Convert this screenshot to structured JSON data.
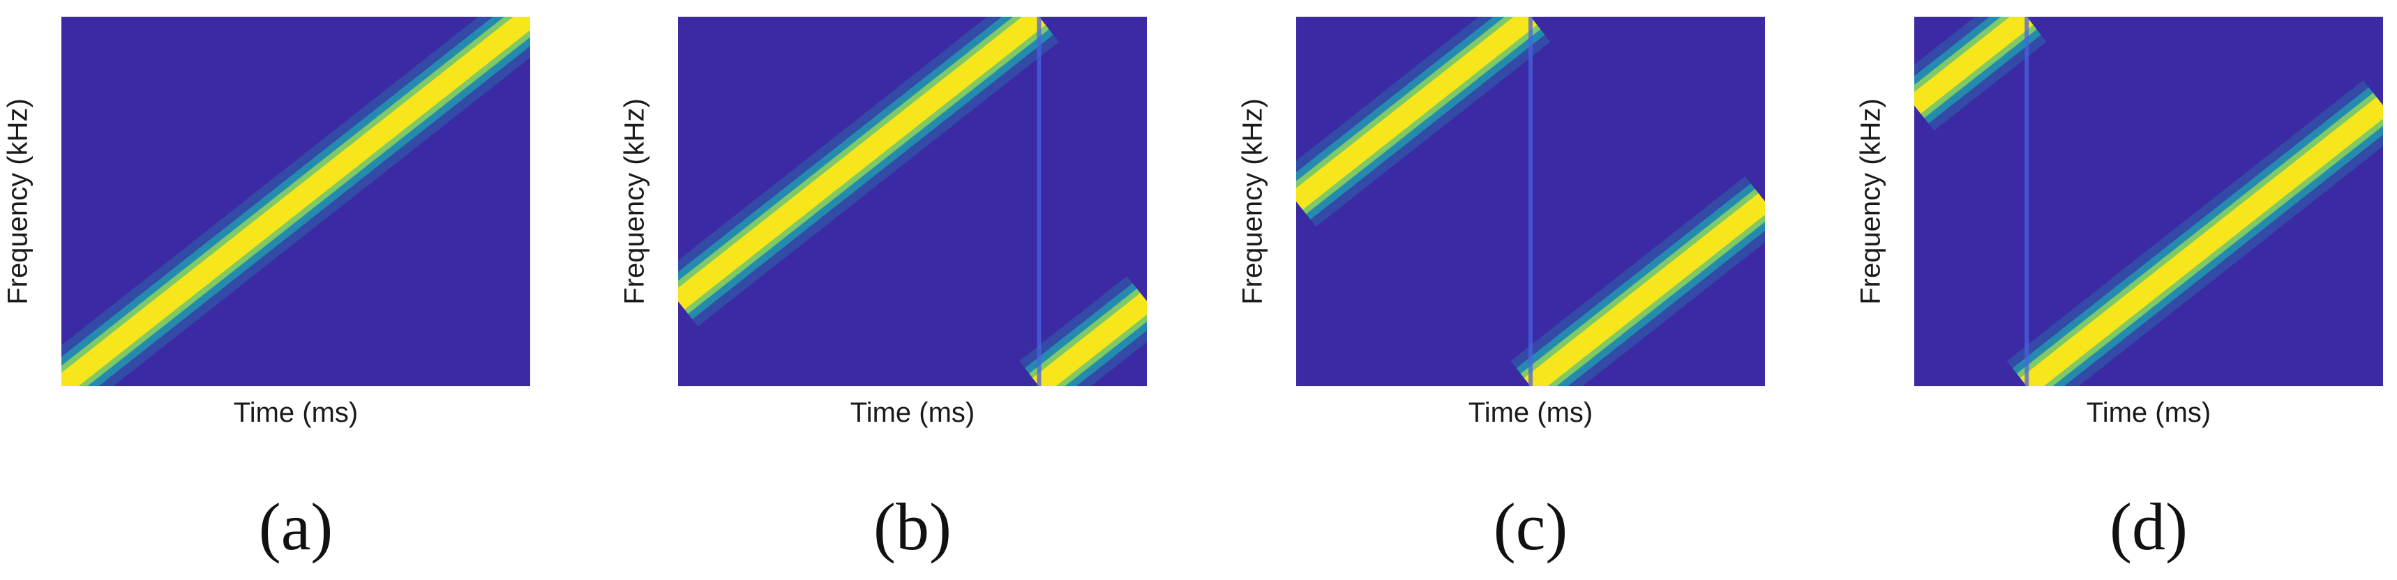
{
  "figure": {
    "colors": {
      "background": "#3b2aa3",
      "band_edge": "#19c1b5",
      "band_core": "#f7e61c"
    }
  },
  "chart_data": [
    {
      "type": "heatmap",
      "panel_label": "(a)",
      "xlabel": "Time (ms)",
      "ylabel": "Frequency (kHz)",
      "xlim": [
        0,
        1
      ],
      "ylim": [
        0,
        1
      ],
      "chirp_start_fraction": 0.0,
      "grid": false,
      "ticks": false
    },
    {
      "type": "heatmap",
      "panel_label": "(b)",
      "xlabel": "Time (ms)",
      "ylabel": "Frequency (kHz)",
      "xlim": [
        0,
        1
      ],
      "ylim": [
        0,
        1
      ],
      "chirp_start_fraction": 0.23,
      "grid": false,
      "ticks": false
    },
    {
      "type": "heatmap",
      "panel_label": "(c)",
      "xlabel": "Time (ms)",
      "ylabel": "Frequency (kHz)",
      "xlim": [
        0,
        1
      ],
      "ylim": [
        0,
        1
      ],
      "chirp_start_fraction": 0.5,
      "grid": false,
      "ticks": false
    },
    {
      "type": "heatmap",
      "panel_label": "(d)",
      "xlabel": "Time (ms)",
      "ylabel": "Frequency (kHz)",
      "xlim": [
        0,
        1
      ],
      "ylim": [
        0,
        1
      ],
      "chirp_start_fraction": 0.76,
      "grid": false,
      "ticks": false
    }
  ]
}
